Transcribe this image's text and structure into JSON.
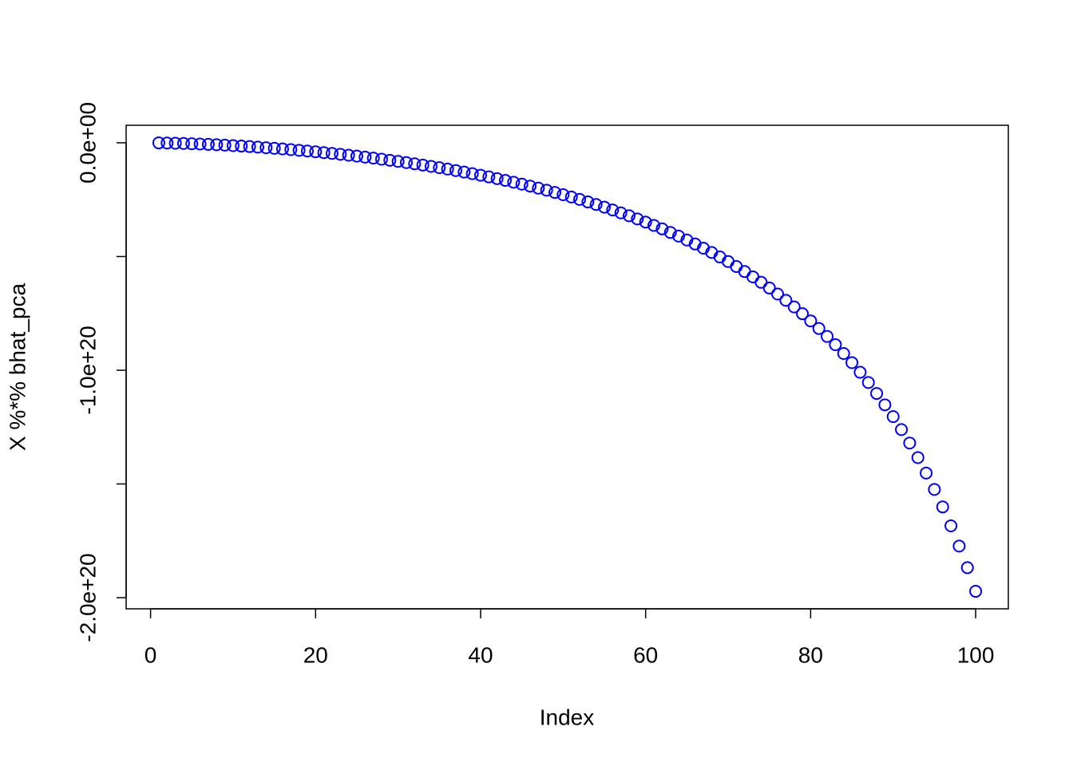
{
  "chart_data": {
    "type": "scatter",
    "x_label": "Index",
    "y_label": "X %*% bhat_pca",
    "marker": "open-circle",
    "series": [
      {
        "color": "#0000ff",
        "x": [
          1,
          2,
          3,
          4,
          5,
          6,
          7,
          8,
          9,
          10,
          11,
          12,
          13,
          14,
          15,
          16,
          17,
          18,
          19,
          20,
          21,
          22,
          23,
          24,
          25,
          26,
          27,
          28,
          29,
          30,
          31,
          32,
          33,
          34,
          35,
          36,
          37,
          38,
          39,
          40,
          41,
          42,
          43,
          44,
          45,
          46,
          47,
          48,
          49,
          50,
          51,
          52,
          53,
          54,
          55,
          56,
          57,
          58,
          59,
          60,
          61,
          62,
          63,
          64,
          65,
          66,
          67,
          68,
          69,
          70,
          71,
          72,
          73,
          74,
          75,
          76,
          77,
          78,
          79,
          80,
          81,
          82,
          83,
          84,
          85,
          86,
          87,
          88,
          89,
          90,
          91,
          92,
          93,
          94,
          95,
          96,
          97,
          98,
          99,
          100
        ],
        "values": [
          -3.2e+16,
          -9.5e+16,
          -1.8e+17,
          -2.83e+17,
          -4.03e+17,
          -5.39e+17,
          -6.9e+17,
          -8.56e+17,
          -1.037e+18,
          -1.231e+18,
          -1.439e+18,
          -1.662e+18,
          -1.898e+18,
          -2.148e+18,
          -2.411e+18,
          -2.69e+18,
          -2.982e+18,
          -3.289e+18,
          -3.609e+18,
          -3.945e+18,
          -4.297e+18,
          -4.66e+18,
          -5.042e+18,
          -5.439e+18,
          -5.852e+18,
          -6.285e+18,
          -6.731e+18,
          -7.195e+18,
          -7.671e+18,
          -8.171e+18,
          -8.69e+18,
          -9.22e+18,
          -9.778e+18,
          -1.035e+19,
          -1.094e+19,
          -1.156e+19,
          -1.22e+19,
          -1.287e+19,
          -1.355e+19,
          -1.425e+19,
          -1.499e+19,
          -1.574e+19,
          -1.653e+19,
          -1.733e+19,
          -1.818e+19,
          -1.903e+19,
          -1.994e+19,
          -2.085e+19,
          -2.183e+19,
          -2.282e+19,
          -2.384e+19,
          -2.489e+19,
          -2.6e+19,
          -2.713e+19,
          -2.831e+19,
          -2.953e+19,
          -3.08e+19,
          -3.209e+19,
          -3.347e+19,
          -3.486e+19,
          -3.632e+19,
          -3.784e+19,
          -3.941e+19,
          -4.102e+19,
          -4.273e+19,
          -4.45e+19,
          -4.632e+19,
          -4.822e+19,
          -5.02e+19,
          -5.221e+19,
          -5.439e+19,
          -5.66e+19,
          -5.894e+19,
          -6.134e+19,
          -6.384e+19,
          -6.651e+19,
          -6.926e+19,
          -7.215e+19,
          -7.516e+19,
          -7.832e+19,
          -8.165e+19,
          -8.513e+19,
          -8.876e+19,
          -9.263e+19,
          -9.666e+19,
          -1.009e+20,
          -1.054e+20,
          -1.102e+20,
          -1.152e+20,
          -1.204e+20,
          -1.261e+20,
          -1.32e+20,
          -1.384e+20,
          -1.452e+20,
          -1.524e+20,
          -1.601e+20,
          -1.684e+20,
          -1.773e+20,
          -1.868e+20,
          -1.972e+20
        ]
      }
    ],
    "xlim": [
      -2.96,
      103.96
    ],
    "xticks": [
      0,
      20,
      40,
      60,
      80,
      100
    ],
    "ylim": [
      -2.049e+20,
      7.7e+18
    ],
    "yticks": [
      {
        "value": 0,
        "label": "0.0e+00"
      },
      {
        "value": -5e+19,
        "label": null
      },
      {
        "value": -1e+20,
        "label": "-1.0e+20"
      },
      {
        "value": -1.5e+20,
        "label": null
      },
      {
        "value": -2e+20,
        "label": "-2.0e+20"
      }
    ],
    "grid": false
  }
}
